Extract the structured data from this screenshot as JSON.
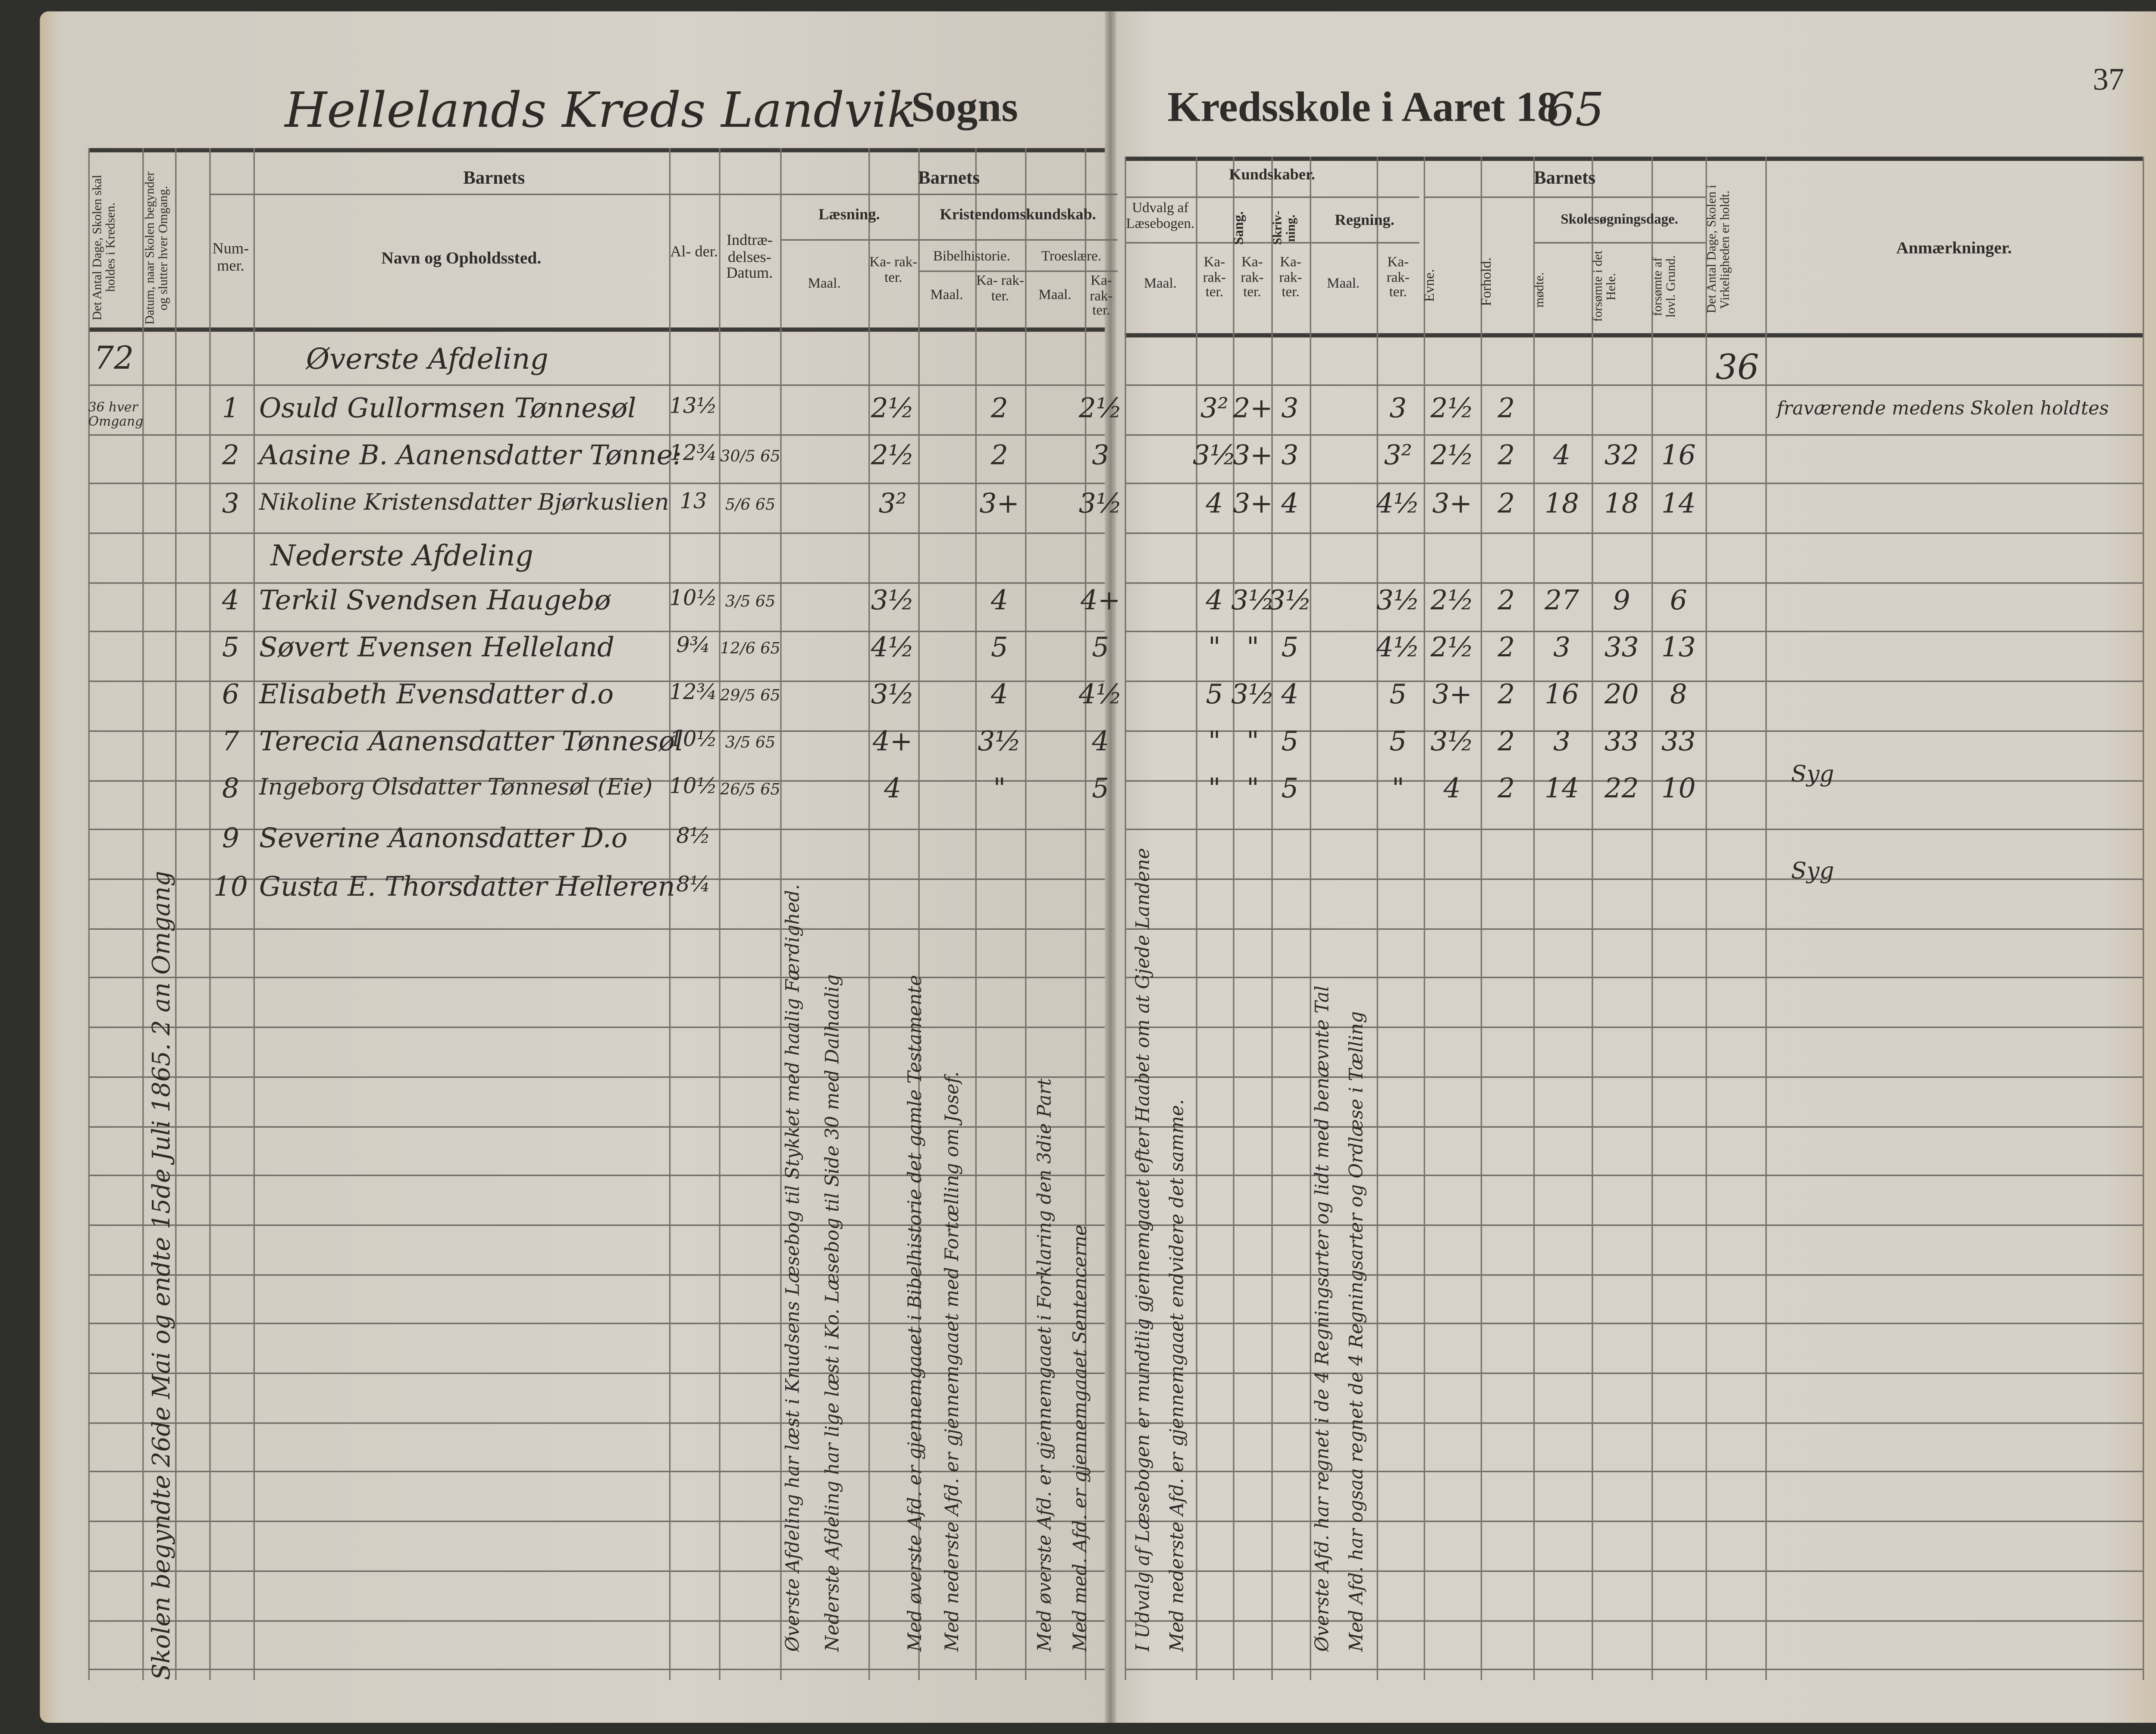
{
  "title": {
    "handwritten_district": "Hellelands Kreds Landvik",
    "printed_sogns": "Sogns",
    "printed_kredsskole": "Kredsskole i Aaret 18",
    "handwritten_year": "65"
  },
  "page_number": "37",
  "headers": {
    "antal_dage": "Det Antal Dage, Skolen skal holdes i Kredsen.",
    "datum_omgang": "Datum, naar Skolen begynder og slutter hver Omgang.",
    "barnets_1": "Barnets",
    "nummer": "Num- mer.",
    "navn": "Navn og Opholdssted.",
    "alder": "Al- der.",
    "indtraedelses": "Indtræ- delses- Datum.",
    "barnets_2": "Barnets",
    "laesning": "Læsning.",
    "kristendom": "Kristendomskundskab.",
    "bibelhistorie": "Bibelhistorie.",
    "troeslaere": "Troeslære.",
    "maal": "Maal.",
    "karakter": "Ka- rak- ter.",
    "kundskaber": "Kundskaber.",
    "udvalg": "Udvalg af Læsebogen.",
    "sang": "Sang.",
    "skrivning": "Skriv- ning.",
    "regning": "Regning.",
    "barnets_3": "Barnets",
    "evne": "Evne.",
    "forhold": "Forhold.",
    "skolesogningsdage": "Skolesøgningsdage.",
    "modte": "mødte.",
    "forsomte_hele": "forsømte i det Hele.",
    "forsomte_lovl": "forsømte af lovl. Grund.",
    "antal_virkelig": "Det Antal Dage, Skolen i Virkeligheden er holdt.",
    "anmaerkninger": "Anmærkninger."
  },
  "antal_dage_value": "72",
  "omgang_note": "36 hver Omgang",
  "virkelig_value": "36",
  "sections": {
    "upper": "Øverste Afdeling",
    "lower": "Nederste Afdeling"
  },
  "rows": [
    {
      "num": "1",
      "name": "Osuld Gullormsen Tønnesøl",
      "age": "13½",
      "date": "",
      "laes": "2½",
      "bibel": "2",
      "troes": "2½",
      "udvalg": "3²",
      "sang": "2+",
      "skriv": "3",
      "regn": "3",
      "evne": "2½",
      "forhold": "2",
      "modte": "",
      "fors_hele": "",
      "fors_lovl": "",
      "anm": "fraværende medens Skolen holdtes"
    },
    {
      "num": "2",
      "name": "Aasine B. Aanensdatter Tønne:",
      "age": "12¾",
      "date": "30/5 65",
      "laes": "2½",
      "bibel": "2",
      "troes": "3",
      "udvalg": "3½",
      "sang": "3+",
      "skriv": "3",
      "regn": "3²",
      "evne": "2½",
      "forhold": "2",
      "modte": "4",
      "fors_hele": "32",
      "fors_lovl": "16",
      "anm": ""
    },
    {
      "num": "3",
      "name": "Nikoline Kristensdatter Bjørkuslien",
      "age": "13",
      "date": "5/6 65",
      "laes": "3²",
      "bibel": "3+",
      "troes": "3½",
      "udvalg": "4",
      "sang": "3+",
      "skriv": "4",
      "regn": "4½",
      "evne": "3+",
      "forhold": "2",
      "modte": "18",
      "fors_hele": "18",
      "fors_lovl": "14",
      "anm": ""
    },
    {
      "num": "4",
      "name": "Terkil Svendsen Haugebø",
      "age": "10½",
      "date": "3/5 65",
      "laes": "3½",
      "bibel": "4",
      "troes": "4+",
      "udvalg": "4",
      "sang": "3½",
      "skriv": "3½",
      "regn": "3½",
      "evne": "2½",
      "forhold": "2",
      "modte": "27",
      "fors_hele": "9",
      "fors_lovl": "6",
      "anm": ""
    },
    {
      "num": "5",
      "name": "Søvert Evensen Helleland",
      "age": "9¾",
      "date": "12/6 65",
      "laes": "4½",
      "bibel": "5",
      "troes": "5",
      "udvalg": "\"",
      "sang": "\"",
      "skriv": "5",
      "regn": "4½",
      "evne": "2½",
      "forhold": "2",
      "modte": "3",
      "fors_hele": "33",
      "fors_lovl": "13",
      "anm": ""
    },
    {
      "num": "6",
      "name": "Elisabeth Evensdatter d.o",
      "age": "12¾",
      "date": "29/5 65",
      "laes": "3½",
      "bibel": "4",
      "troes": "4½",
      "udvalg": "5",
      "sang": "3½",
      "skriv": "4",
      "regn": "5",
      "evne": "3+",
      "forhold": "2",
      "modte": "16",
      "fors_hele": "20",
      "fors_lovl": "8",
      "anm": ""
    },
    {
      "num": "7",
      "name": "Terecia Aanensdatter Tønnesøl",
      "age": "10½",
      "date": "3/5 65",
      "laes": "4+",
      "bibel": "3½",
      "troes": "4",
      "udvalg": "\"",
      "sang": "\"",
      "skriv": "5",
      "regn": "5",
      "evne": "3½",
      "forhold": "2",
      "modte": "3",
      "fors_hele": "33",
      "fors_lovl": "33",
      "anm": "Syg"
    },
    {
      "num": "8",
      "name": "Ingeborg Olsdatter Tønnesøl (Eie)",
      "age": "10½",
      "date": "26/5 65",
      "laes": "4",
      "bibel": "\"",
      "troes": "5",
      "udvalg": "\"",
      "sang": "\"",
      "skriv": "5",
      "regn": "\"",
      "evne": "4",
      "forhold": "2",
      "modte": "14",
      "fors_hele": "22",
      "fors_lovl": "10",
      "anm": ""
    },
    {
      "num": "9",
      "name": "Severine Aanonsdatter D.o",
      "age": "8½",
      "date": "",
      "laes": "",
      "bibel": "",
      "troes": "",
      "udvalg": "",
      "sang": "",
      "skriv": "",
      "regn": "",
      "evne": "",
      "forhold": "",
      "modte": "",
      "fors_hele": "",
      "fors_lovl": "",
      "anm": "Syg"
    },
    {
      "num": "10",
      "name": "Gusta E. Thorsdatter Helleren",
      "age": "8¼",
      "date": "",
      "laes": "",
      "bibel": "",
      "troes": "",
      "udvalg": "",
      "sang": "",
      "skriv": "",
      "regn": "",
      "evne": "",
      "forhold": "",
      "modte": "",
      "fors_hele": "",
      "fors_lovl": "",
      "anm": ""
    }
  ],
  "vertical_notes": {
    "school_period": "Skolen begyndte 26de Mai og endte 15de Juli 1865. 2 an Omgang",
    "laesning_upper": "Øverste Afdeling har læst i Knudsens Læsebog til Stykket med haalig Færdighed.",
    "laesning_lower": "Nederste Afdeling har lige læst i Ko. Læsebog til Side 30 med Dalhaalig",
    "bibel_upper": "Med øverste Afd. er gjennemgaaet i Bibelhistorie det gamle Testamente",
    "bibel_lower": "Med nederste Afd. er gjennemgaaet med Fortælling om Josef.",
    "troes_upper": "Med øverste Afd. er gjennemgaaet i Forklaring den 3die Part",
    "troes_lower": "Med med. Afd. er gjennemgaaet Sentencerne",
    "udvalg_upper": "I Udvalg af Læsebogen er mundtlig gjennemgaaet efter Haabet om at Gjede Landene",
    "udvalg_lower": "Med nederste Afd. er gjennemgaaet endvidere det samme.",
    "regning_upper": "Øverste Afd. har regnet i de 4 Regningsarter og lidt med benævnte Tal",
    "regning_lower": "Med Afd. har ogsaa regnet de 4 Regningsarter og Ordlæse i Tælling"
  }
}
